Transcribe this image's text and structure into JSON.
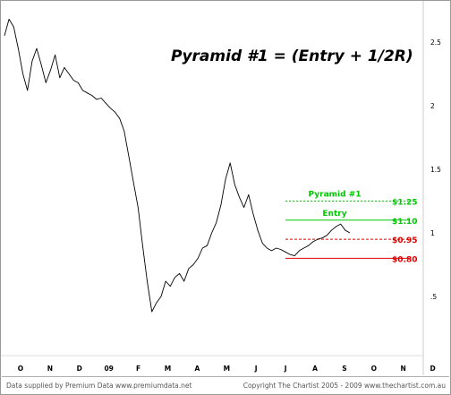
{
  "annotation_title": "Pyramid #1 = (Entry + 1/2R)",
  "footer": {
    "left": "Data supplied by Premium Data www.premiumdata.net",
    "right": "Copyright The Chartist 2005 - 2009  www.thechartist.com.au"
  },
  "colors": {
    "green": "#00c800",
    "red": "#e00000",
    "price": "#000000"
  },
  "chart_data": {
    "type": "line",
    "title": "",
    "xlabel": "",
    "ylabel": "",
    "ylim": [
      0.25,
      2.7
    ],
    "y_ticks": [
      {
        "value": 2.5,
        "label": "2.5"
      },
      {
        "value": 2.0,
        "label": "2"
      },
      {
        "value": 1.5,
        "label": "1.5"
      },
      {
        "value": 1.0,
        "label": "1"
      },
      {
        "value": 0.5,
        "label": ".5"
      }
    ],
    "x_ticks": [
      "O",
      "N",
      "D",
      "09",
      "F",
      "M",
      "A",
      "M",
      "J",
      "J",
      "A",
      "S",
      "O",
      "N",
      "D"
    ],
    "grid": false,
    "series": [
      {
        "values": [
          2.55,
          2.68,
          2.62,
          2.45,
          2.25,
          2.12,
          2.35,
          2.45,
          2.32,
          2.18,
          2.28,
          2.4,
          2.22,
          2.3,
          2.25,
          2.2,
          2.18,
          2.12,
          2.1,
          2.08,
          2.05,
          2.06,
          2.02,
          1.98,
          1.95,
          1.9,
          1.8,
          1.6,
          1.4,
          1.2,
          0.9,
          0.62,
          0.38,
          0.45,
          0.5,
          0.62,
          0.58,
          0.65,
          0.68,
          0.62,
          0.72,
          0.75,
          0.8,
          0.88,
          0.9,
          1.0,
          1.08,
          1.22,
          1.42,
          1.55,
          1.38,
          1.28,
          1.2,
          1.3,
          1.15,
          1.02,
          0.92,
          0.88,
          0.86,
          0.88,
          0.87,
          0.85,
          0.83,
          0.82,
          0.86,
          0.88,
          0.9,
          0.93,
          0.95,
          0.96,
          0.98,
          1.02,
          1.05,
          1.07,
          1.02,
          1.0
        ]
      }
    ],
    "levels": [
      {
        "name": "Pyramid #1",
        "value": 1.25,
        "label": "$1.25",
        "color": "#00c800",
        "style": "dotted"
      },
      {
        "name": "Entry",
        "value": 1.1,
        "label": "$1.10",
        "color": "#00c800",
        "style": "solid"
      },
      {
        "name": "",
        "value": 0.95,
        "label": "$0.95",
        "color": "#e00000",
        "style": "dashed"
      },
      {
        "name": "",
        "value": 0.8,
        "label": "$0.80",
        "color": "#e00000",
        "style": "solid"
      }
    ]
  }
}
